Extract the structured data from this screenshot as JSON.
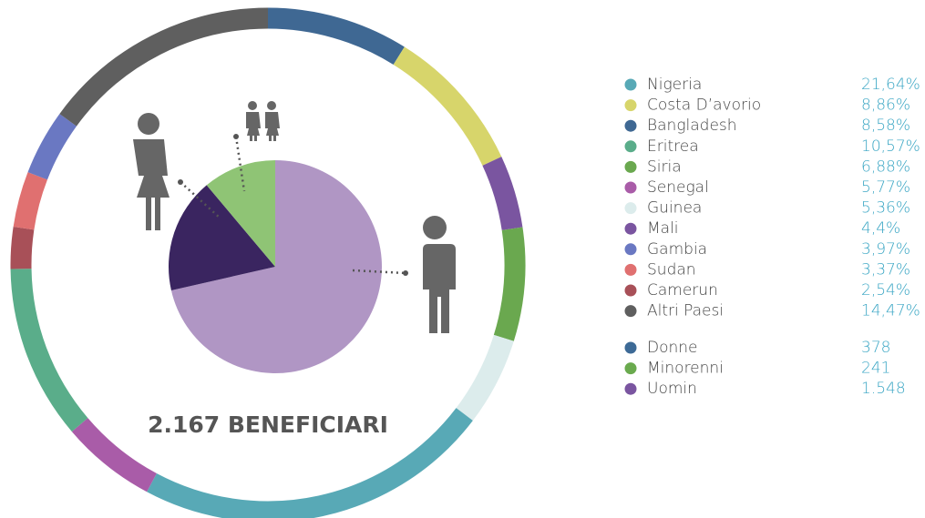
{
  "chart_data": [
    {
      "type": "donut",
      "categories": [
        "Nigeria",
        "Costa D’avorio",
        "Bangladesh",
        "Eritrea",
        "Siria",
        "Senegal",
        "Guinea",
        "Mali",
        "Gambia",
        "Sudan",
        "Camerun",
        "Altri Paesi"
      ],
      "values": [
        21.64,
        8.86,
        8.58,
        10.57,
        6.88,
        5.77,
        5.36,
        4.4,
        3.97,
        3.37,
        2.54,
        14.47
      ],
      "value_labels": [
        "21,64%",
        "8,86%",
        "8,58%",
        "10,57%",
        "6,88%",
        "5,77%",
        "5,36%",
        "4,4%",
        "3,97%",
        "3,37%",
        "2,54%",
        "14,47%"
      ],
      "colors": [
        "#58a9b6",
        "#d7d56b",
        "#3f6893",
        "#5aad8a",
        "#6aa84f",
        "#a95ca8",
        "#dcecec",
        "#7a55a0",
        "#6a78c2",
        "#e07070",
        "#a85058",
        "#5f5f5f"
      ]
    },
    {
      "type": "pie",
      "annotation": "2.167 BENEFICIARI",
      "categories": [
        "Donne",
        "Minorenni",
        "Uomin"
      ],
      "values": [
        378,
        241,
        1548
      ],
      "value_labels": [
        "378",
        "241",
        "1.548"
      ],
      "colors": [
        "#3a2560",
        "#8fc475",
        "#b096c4"
      ],
      "legend_colors": [
        "#3d6a96",
        "#6aaa4e",
        "#7a55a0"
      ]
    }
  ]
}
